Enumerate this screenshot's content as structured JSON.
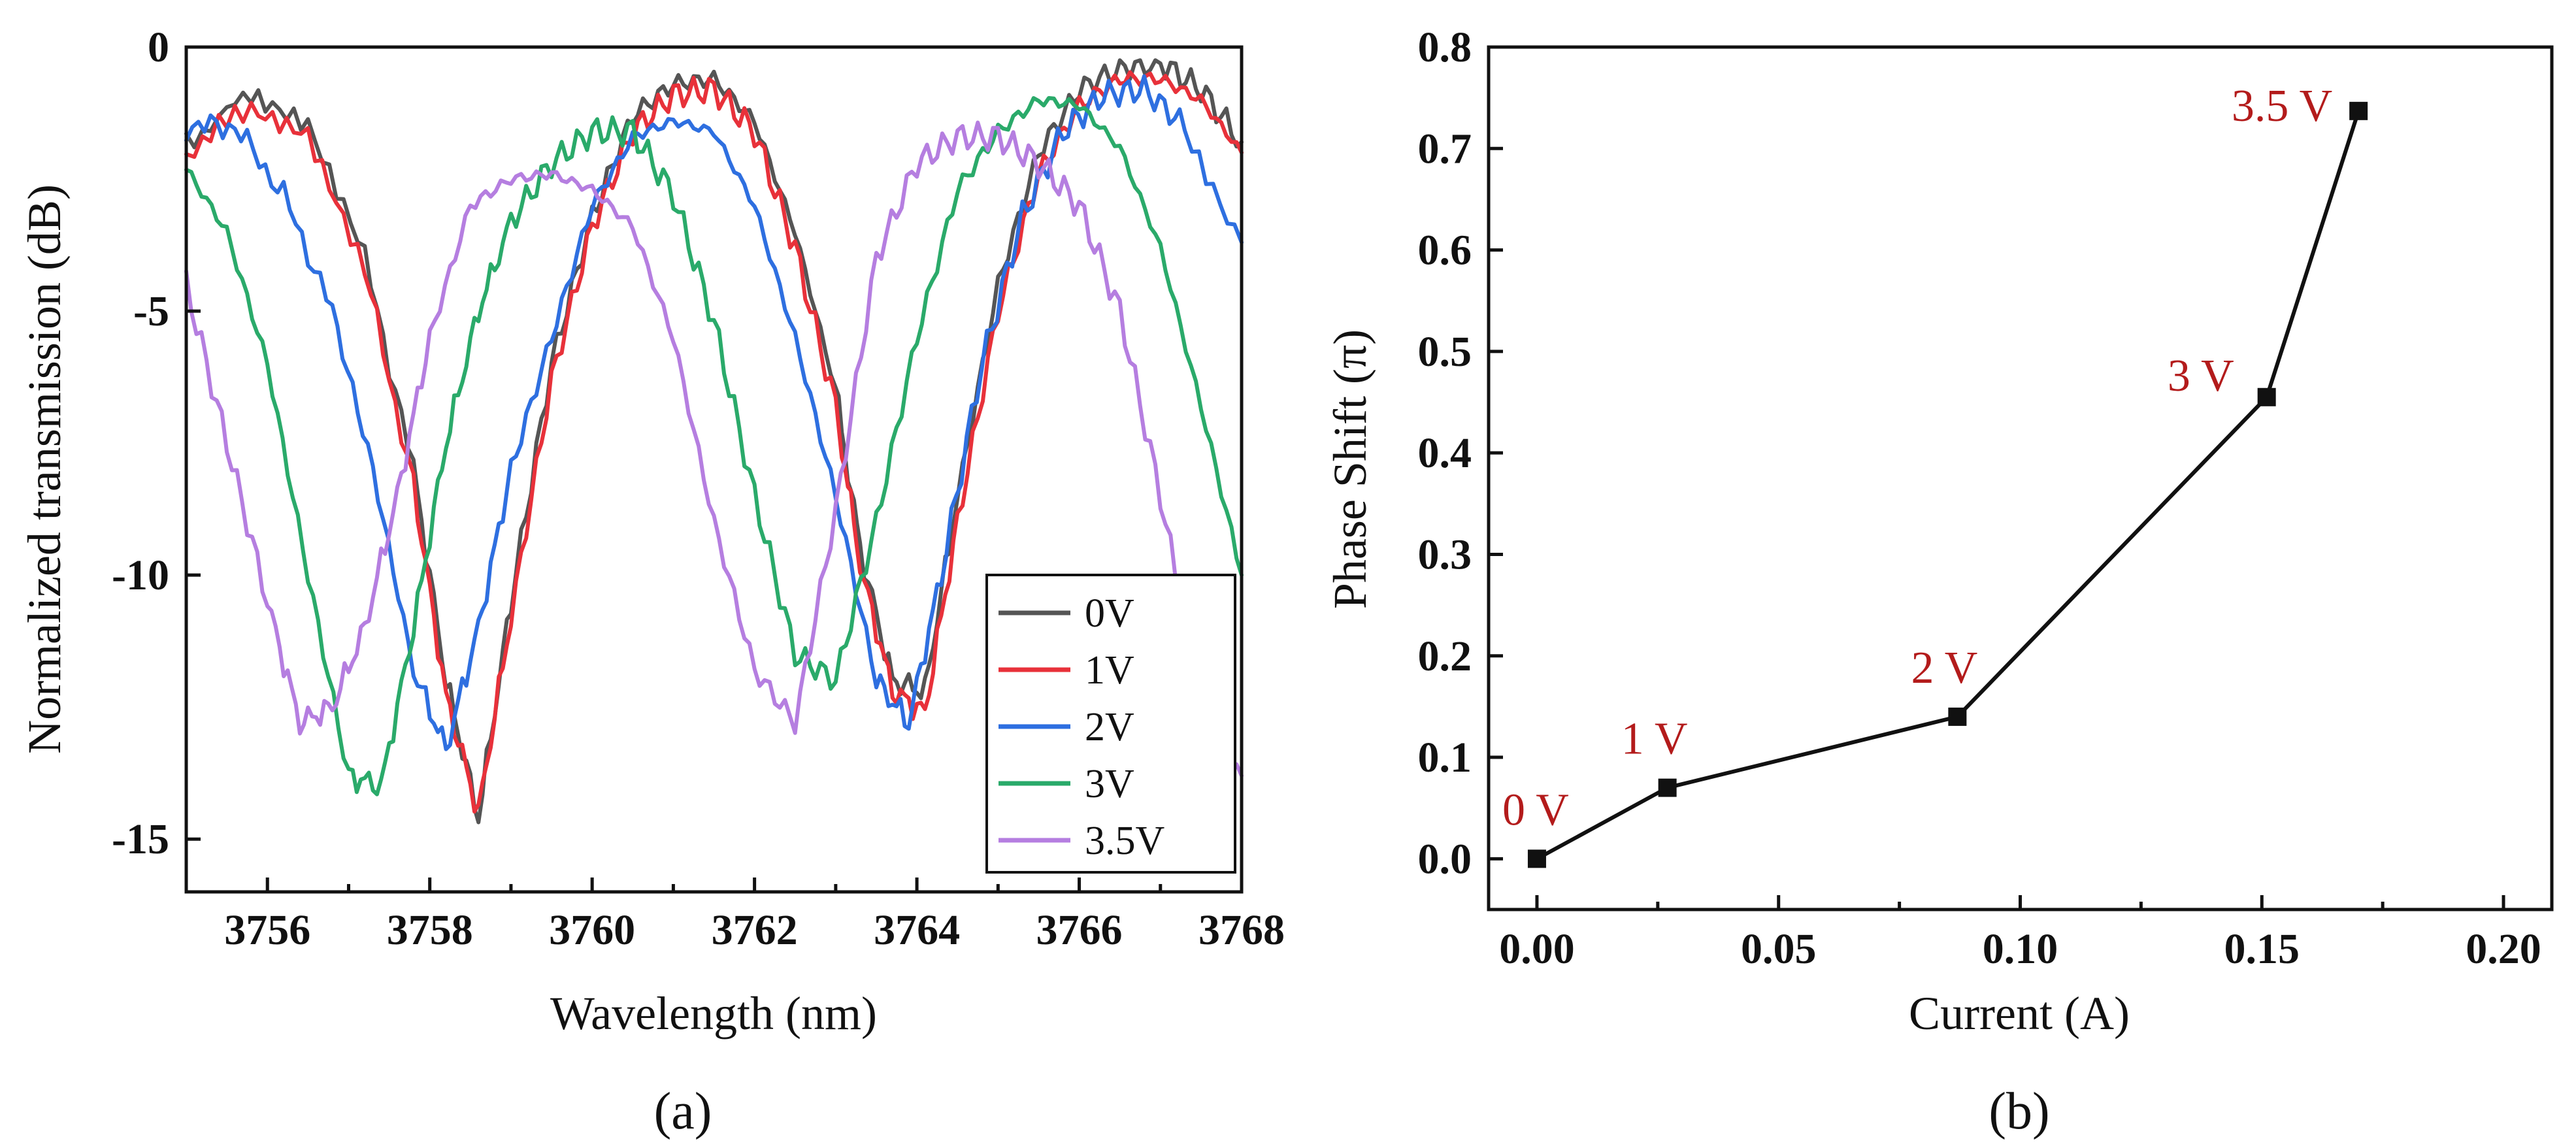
{
  "chart_data": [
    {
      "panel": "(a)",
      "type": "line",
      "title": "",
      "xlabel": "Wavelength (nm)",
      "ylabel": "Normalized transmission (dB)",
      "xlim": [
        3755,
        3768
      ],
      "ylim": [
        -16,
        0
      ],
      "xticks": [
        3756,
        3758,
        3760,
        3762,
        3764,
        3766,
        3768
      ],
      "xtick_labels": [
        "3756",
        "3758",
        "3760",
        "3762",
        "3764",
        "3766",
        "3768"
      ],
      "yticks": [
        0,
        -5,
        -10,
        -15
      ],
      "ytick_labels": [
        "0",
        "-5",
        "-10",
        "-15"
      ],
      "legend_position": "bottom-right",
      "series": [
        {
          "name": "0V",
          "color": "#555555",
          "x": [
            3755,
            3755.8,
            3756.5,
            3757.2,
            3757.8,
            3758.2,
            3758.6,
            3759.0,
            3759.5,
            3760.0,
            3760.5,
            3761.0,
            3761.5,
            3762.0,
            3762.5,
            3763.0,
            3763.3,
            3763.7,
            3764.1,
            3764.5,
            3765.0,
            3765.5,
            3766.0,
            3766.5,
            3767.0,
            3767.5,
            3768
          ],
          "y": [
            -1.8,
            -0.9,
            -1.5,
            -4.0,
            -8.0,
            -12.0,
            -14.6,
            -10.5,
            -6.0,
            -3.2,
            -1.3,
            -0.7,
            -0.6,
            -1.4,
            -3.5,
            -6.5,
            -9.5,
            -12.0,
            -12.2,
            -8.5,
            -4.5,
            -2.0,
            -0.8,
            -0.4,
            -0.3,
            -0.8,
            -1.8
          ]
        },
        {
          "name": "1V",
          "color": "#e8313a",
          "x": [
            3755,
            3755.8,
            3756.5,
            3757.2,
            3757.8,
            3758.2,
            3758.6,
            3759.0,
            3759.5,
            3760.0,
            3760.5,
            3761.0,
            3761.5,
            3762.0,
            3762.5,
            3763.0,
            3763.3,
            3763.7,
            3764.1,
            3764.5,
            3765.0,
            3765.5,
            3766.0,
            3766.5,
            3767.0,
            3767.5,
            3768
          ],
          "y": [
            -2.0,
            -1.1,
            -1.6,
            -4.2,
            -8.3,
            -12.3,
            -14.5,
            -10.8,
            -6.3,
            -3.4,
            -1.6,
            -0.9,
            -0.8,
            -1.6,
            -3.8,
            -6.8,
            -9.8,
            -12.2,
            -12.6,
            -9.0,
            -5.0,
            -2.4,
            -1.1,
            -0.6,
            -0.6,
            -1.0,
            -2.0
          ]
        },
        {
          "name": "2V",
          "color": "#2e6fe0",
          "x": [
            3755,
            3755.6,
            3756.2,
            3756.8,
            3757.3,
            3757.8,
            3758.2,
            3758.6,
            3759.0,
            3759.5,
            3760.0,
            3760.5,
            3761.0,
            3761.5,
            3762.0,
            3762.5,
            3763.0,
            3763.5,
            3763.9,
            3764.3,
            3764.8,
            3765.3,
            3765.8,
            3766.3,
            3766.8,
            3767.3,
            3768
          ],
          "y": [
            -1.5,
            -1.5,
            -2.8,
            -5.0,
            -8.0,
            -11.8,
            -13.3,
            -11.0,
            -8.0,
            -5.5,
            -3.0,
            -1.7,
            -1.4,
            -1.6,
            -3.0,
            -5.5,
            -8.5,
            -12.0,
            -12.8,
            -10.0,
            -6.0,
            -3.2,
            -1.6,
            -0.9,
            -0.8,
            -1.5,
            -3.7
          ]
        },
        {
          "name": "3V",
          "color": "#2aaa6a",
          "x": [
            3755,
            3755.5,
            3756.0,
            3756.5,
            3757.0,
            3757.4,
            3757.8,
            3758.2,
            3758.6,
            3759.0,
            3759.5,
            3760.0,
            3760.5,
            3761.0,
            3761.5,
            3762.0,
            3762.5,
            3763.0,
            3763.5,
            3764.0,
            3764.5,
            3765.0,
            3765.5,
            3766.0,
            3766.5,
            3767.0,
            3767.5,
            3768
          ],
          "y": [
            -2.3,
            -3.5,
            -6.0,
            -10.0,
            -13.8,
            -14.0,
            -11.0,
            -7.5,
            -5.0,
            -3.3,
            -2.2,
            -1.6,
            -1.6,
            -2.8,
            -5.2,
            -8.5,
            -11.5,
            -12.0,
            -9.0,
            -5.5,
            -2.7,
            -1.6,
            -1.0,
            -1.1,
            -1.9,
            -3.8,
            -6.8,
            -10.0
          ]
        },
        {
          "name": "3.5V",
          "color": "#b57ee0",
          "x": [
            3755,
            3755.5,
            3756.0,
            3756.4,
            3756.8,
            3757.2,
            3757.6,
            3758.0,
            3758.5,
            3759.0,
            3759.5,
            3760.0,
            3760.5,
            3761.0,
            3761.5,
            3762.0,
            3762.5,
            3763.0,
            3763.5,
            3764.0,
            3764.5,
            3765.0,
            3765.5,
            3766.0,
            3766.5,
            3767.0,
            3767.5,
            3768
          ],
          "y": [
            -4.5,
            -7.5,
            -10.5,
            -12.8,
            -12.5,
            -11.0,
            -8.5,
            -5.5,
            -3.0,
            -2.5,
            -2.4,
            -2.7,
            -3.4,
            -5.5,
            -9.0,
            -11.8,
            -12.8,
            -8.8,
            -4.0,
            -2.2,
            -1.7,
            -1.7,
            -2.2,
            -3.0,
            -5.0,
            -8.5,
            -12.5,
            -13.8
          ]
        }
      ]
    },
    {
      "panel": "(b)",
      "type": "line",
      "title": "",
      "xlabel": "Current (A)",
      "ylabel": "Phase Shift (π)",
      "xlim": [
        -0.01,
        0.21
      ],
      "ylim": [
        -0.05,
        0.8
      ],
      "xticks": [
        0.0,
        0.05,
        0.1,
        0.15,
        0.2
      ],
      "xtick_labels": [
        "0.00",
        "0.05",
        "0.10",
        "0.15",
        "0.20"
      ],
      "yticks": [
        0.0,
        0.1,
        0.2,
        0.3,
        0.4,
        0.5,
        0.6,
        0.7,
        0.8
      ],
      "ytick_labels": [
        "0.0",
        "0.1",
        "0.2",
        "0.3",
        "0.4",
        "0.5",
        "0.6",
        "0.7",
        "0.8"
      ],
      "line_color": "#111111",
      "label_color": "#b31b1b",
      "series": [
        {
          "name": "Phase Shift",
          "x": [
            0.0,
            0.027,
            0.087,
            0.151,
            0.17
          ],
          "y": [
            0.0,
            0.07,
            0.14,
            0.455,
            0.737
          ],
          "labels": [
            "0 V",
            "1 V",
            "2 V",
            "3 V",
            "3.5 V"
          ]
        }
      ]
    }
  ]
}
